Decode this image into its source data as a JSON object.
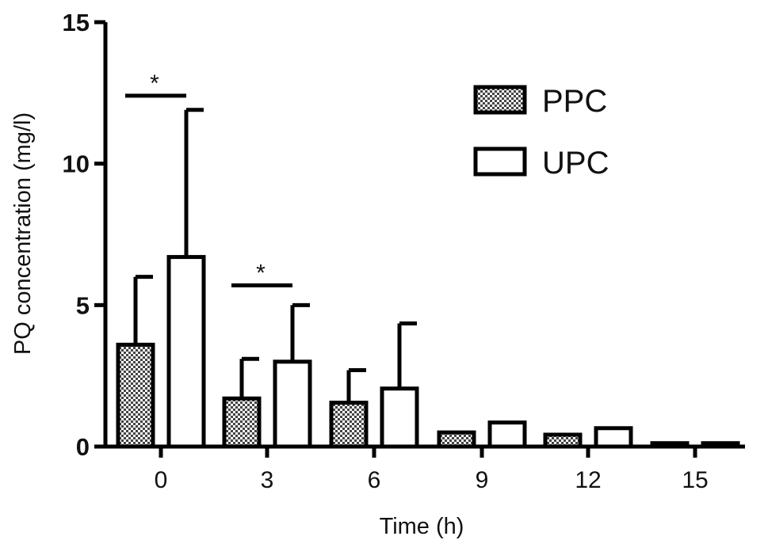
{
  "chart_data": {
    "type": "bar",
    "xlabel": "Time (h)",
    "ylabel": "PQ concentration (mg/l)",
    "categories": [
      "0",
      "3",
      "6",
      "9",
      "12",
      "15"
    ],
    "ylim": [
      0,
      15
    ],
    "yticks": [
      "0",
      "5",
      "10",
      "15"
    ],
    "series": [
      {
        "name": "PPC",
        "pattern": "checkered",
        "values": [
          3.6,
          1.7,
          1.55,
          0.5,
          0.42,
          0.12
        ],
        "error_upper": [
          6.0,
          3.1,
          2.7,
          null,
          null,
          null
        ]
      },
      {
        "name": "UPC",
        "pattern": "open",
        "values": [
          6.7,
          3.0,
          2.05,
          0.85,
          0.65,
          0.12
        ],
        "error_upper": [
          11.9,
          5.0,
          4.35,
          null,
          null,
          null
        ]
      }
    ],
    "significance": [
      {
        "category": "0",
        "y": 12.4,
        "label": "*"
      },
      {
        "category": "3",
        "y": 5.7,
        "label": "*"
      }
    ],
    "legend_position": "top-right",
    "grid": false,
    "colors": {
      "ink": "#000000",
      "checker_light": "#ffffff",
      "checker_dark": "#555555"
    }
  }
}
